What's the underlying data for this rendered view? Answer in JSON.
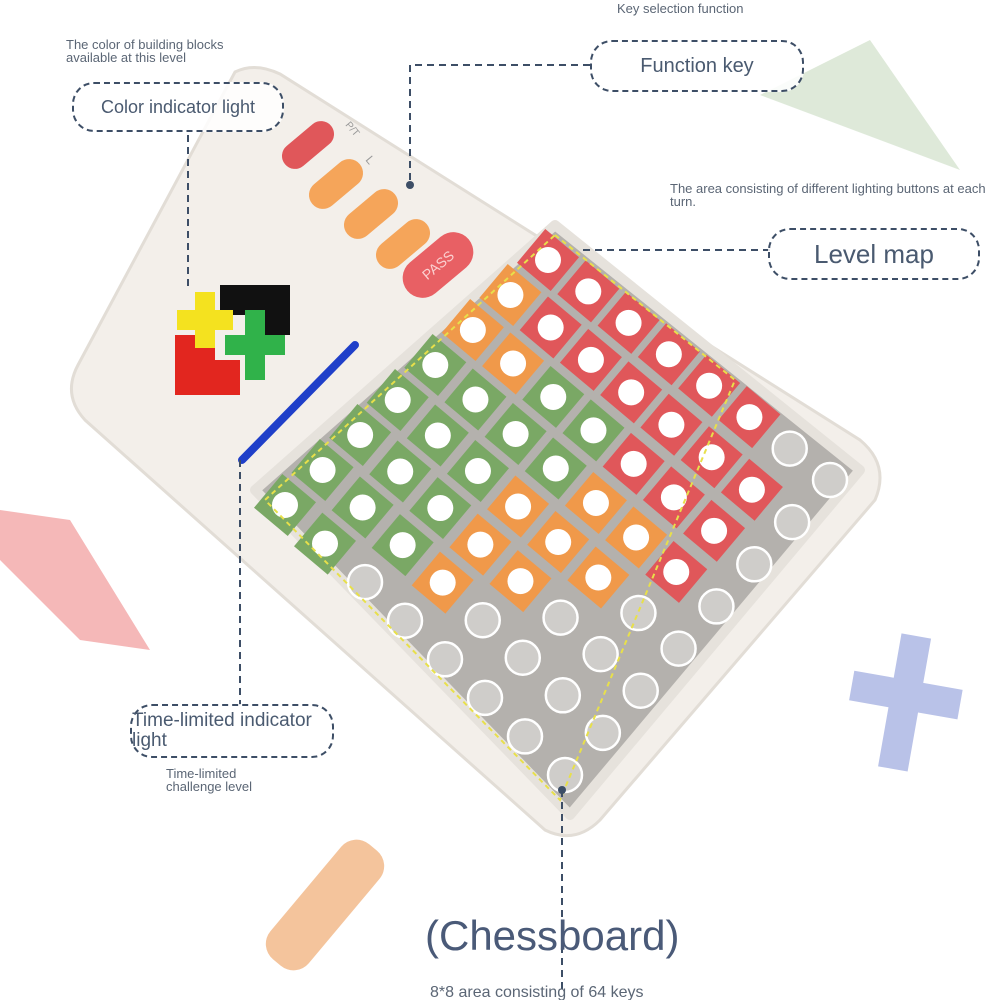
{
  "notes": {
    "key_selection": "Key selection function",
    "building_blocks": "The color of building blocks available at this level",
    "lighting_area": "The area consisting of different lighting buttons at each turn.",
    "time_limited_challenge": "Time-limited challenge level",
    "area_64": "8*8 area consisting of 64 keys"
  },
  "callouts": {
    "function_key": "Function key",
    "color_indicator": "Color indicator light",
    "level_map": "Level map",
    "time_limited": "Time-limited indicator light",
    "chessboard": "(Chessboard)"
  },
  "device": {
    "pass_label": "PASS",
    "button_labels": [
      "P/T",
      "L"
    ]
  },
  "colors": {
    "red": "#e0575a",
    "orange": "#f0994a",
    "green": "#7aa865",
    "gray": "#c9c6c2",
    "blue": "#1f3fc9",
    "line": "#3d4e66"
  },
  "board": [
    "RRRRRRgg",
    "ORRRRRRg",
    "OOGGRRRg",
    "GGGGOORg",
    "GGGOOOgg",
    "GGGOOggg",
    "GGGOgggg",
    "GGgggggg"
  ]
}
